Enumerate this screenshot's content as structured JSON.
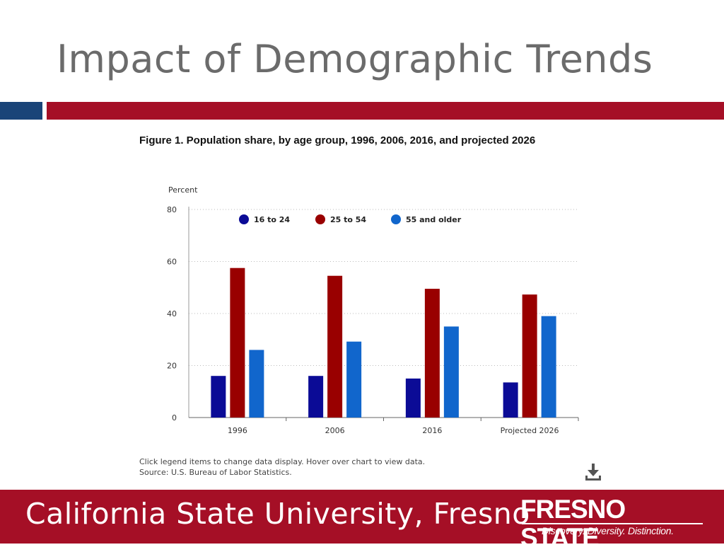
{
  "slide": {
    "title": "Impact of Demographic Trends",
    "accent_blue": "#1a4478",
    "accent_red": "#a50f26"
  },
  "figure": {
    "title": "Figure 1. Population share, by age group, 1996, 2006, 2016, and projected 2026",
    "note": "Click legend items to change data display. Hover over chart to view data.",
    "source": "Source: U.S. Bureau of Labor Statistics.",
    "download_icon": "download-icon"
  },
  "chart_data": {
    "type": "bar",
    "title": "",
    "ylabel": "Percent",
    "xlabel": "",
    "categories": [
      "1996",
      "2006",
      "2016",
      "Projected 2026"
    ],
    "series": [
      {
        "name": "16 to 24",
        "color": "#0b0b96",
        "values": [
          16,
          16,
          15,
          13.5
        ]
      },
      {
        "name": "25 to 54",
        "color": "#990000",
        "values": [
          57.5,
          54.5,
          49.5,
          47.3
        ]
      },
      {
        "name": "55 and older",
        "color": "#1166cc",
        "values": [
          26,
          29.2,
          35,
          39
        ]
      }
    ],
    "ylim": [
      0,
      80
    ],
    "yticks": [
      "0",
      "20",
      "40",
      "60",
      "80"
    ],
    "grid": true,
    "legend_position": "top"
  },
  "footer": {
    "text": "California State University, Fresno",
    "logo_word": "FRESNO STATE",
    "logo_tagline": "Discovery. Diversity. Distinction."
  }
}
